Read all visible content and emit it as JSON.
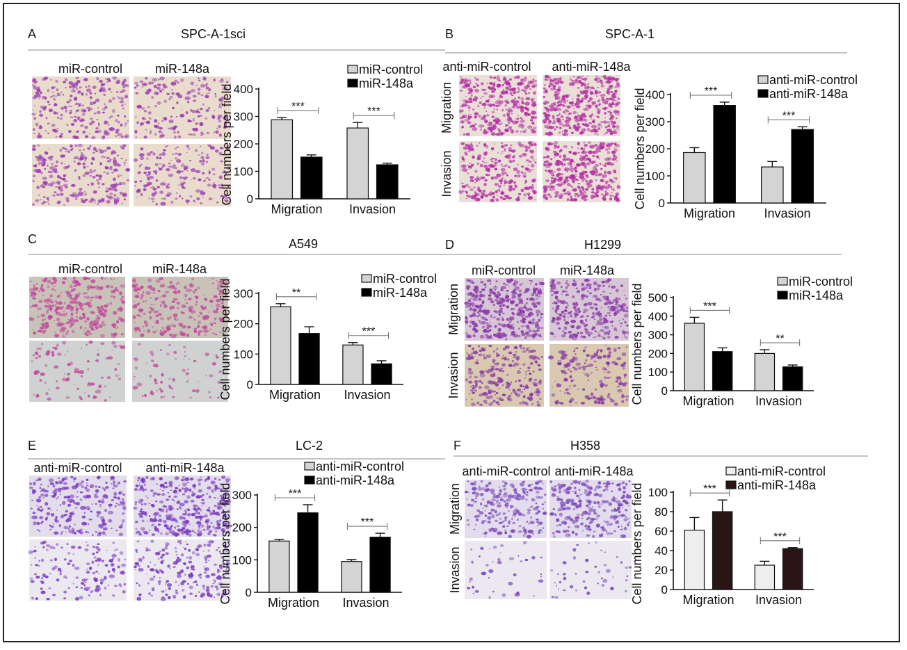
{
  "colors": {
    "control": "#d4d4d4",
    "treat": "#000000",
    "treat_h358": "#2a1515",
    "control_h358": "#eeeeee",
    "cells": "#9b3db0",
    "bg_warm": "#e9dccd",
    "bg_gray": "#cfd2d2",
    "bg_white": "#eeeeee"
  },
  "panels": [
    {
      "letter": "A",
      "title": "SPC-A-1sci",
      "img_labels": [
        "miR-control",
        "miR-148a"
      ],
      "rows": [
        "Migration",
        "Invasion"
      ],
      "cell_color": "#9b3db0",
      "bg_top": "#e9dccd",
      "bg_bot": "#e9dccd",
      "icount_top": 260,
      "icount_bot": 260
    },
    {
      "letter": "B",
      "title": "SPC-A-1",
      "img_labels": [
        "anti-miR-control",
        "anti-miR-148a"
      ],
      "rows": [
        "Migration",
        "Invasion"
      ],
      "cell_color": "#b32fa2",
      "bg_top": "#eadfd7",
      "bg_bot": "#eadfd7",
      "icount_top": 320,
      "icount_bot": 260
    },
    {
      "letter": "C",
      "title": "A549",
      "img_labels": [
        "miR-control",
        "miR-148a"
      ],
      "rows": [
        "Migration",
        "Invasion"
      ],
      "cell_color": "#c24b9c",
      "bg_top": "#c9c2b8",
      "bg_bot": "#cfd2d0",
      "icount_top": 320,
      "icount_bot": 90
    },
    {
      "letter": "D",
      "title": "H1299",
      "img_labels": [
        "miR-control",
        "miR-148a"
      ],
      "rows": [
        "Migration",
        "Invasion"
      ],
      "cell_color": "#8a3aa8",
      "bg_top": "#d7c7d6",
      "bg_bot": "#d9c9b0",
      "icount_top": 360,
      "icount_bot": 230
    },
    {
      "letter": "E",
      "title": "LC-2",
      "img_labels": [
        "anti-miR-control",
        "anti-miR-148a"
      ],
      "rows": [
        "Migration",
        "Invasion"
      ],
      "cell_color": "#7a3cc0",
      "bg_top": "#e3dcea",
      "bg_bot": "#ece8ef",
      "icount_top": 260,
      "icount_bot": 150
    },
    {
      "letter": "F",
      "title": "H358",
      "img_labels": [
        "anti-miR-control",
        "anti-miR-148a"
      ],
      "rows": [
        "Migration",
        "Invasion"
      ],
      "cell_color": "#7d4ab8",
      "bg_top": "#e2dcec",
      "bg_bot": "#ebe8f0",
      "icount_top": 220,
      "icount_bot": 40
    }
  ],
  "chart_data": [
    {
      "panel": "A",
      "type": "bar",
      "categories": [
        "Migration",
        "Invasion"
      ],
      "ylabel": "Cell numbers per field",
      "ylim": [
        0,
        400
      ],
      "yticks": [
        0,
        100,
        200,
        300,
        400
      ],
      "series": [
        {
          "name": "miR-control",
          "values": [
            288,
            258
          ],
          "errors": [
            8,
            20
          ]
        },
        {
          "name": "miR-148a",
          "values": [
            152,
            124
          ],
          "errors": [
            8,
            6
          ]
        }
      ],
      "significance": [
        "***",
        "***"
      ]
    },
    {
      "panel": "B",
      "type": "bar",
      "categories": [
        "Migration",
        "Invasion"
      ],
      "ylabel": "Cell numbers per field",
      "ylim": [
        0,
        400
      ],
      "yticks": [
        0,
        100,
        200,
        300,
        400
      ],
      "series": [
        {
          "name": "anti-miR-control",
          "values": [
            186,
            133
          ],
          "errors": [
            18,
            20
          ]
        },
        {
          "name": "anti-miR-148a",
          "values": [
            360,
            271
          ],
          "errors": [
            12,
            10
          ]
        }
      ],
      "significance": [
        "***",
        "***"
      ]
    },
    {
      "panel": "C",
      "type": "bar",
      "categories": [
        "Migration",
        "Invasion"
      ],
      "ylabel": "Cell numbers per field",
      "ylim": [
        0,
        300
      ],
      "yticks": [
        0,
        100,
        200,
        300
      ],
      "series": [
        {
          "name": "miR-control",
          "values": [
            256,
            130
          ],
          "errors": [
            10,
            8
          ]
        },
        {
          "name": "miR-148a",
          "values": [
            168,
            68
          ],
          "errors": [
            22,
            10
          ]
        }
      ],
      "significance": [
        "**",
        "***"
      ]
    },
    {
      "panel": "D",
      "type": "bar",
      "categories": [
        "Migration",
        "Invasion"
      ],
      "ylabel": "Cell numbers per field",
      "ylim": [
        0,
        500
      ],
      "yticks": [
        0,
        100,
        200,
        300,
        400,
        500
      ],
      "series": [
        {
          "name": "miR-control",
          "values": [
            362,
            200
          ],
          "errors": [
            32,
            20
          ]
        },
        {
          "name": "miR-148a",
          "values": [
            210,
            128
          ],
          "errors": [
            20,
            10
          ]
        }
      ],
      "significance": [
        "***",
        "**"
      ]
    },
    {
      "panel": "E",
      "type": "bar",
      "categories": [
        "Migration",
        "Invasion"
      ],
      "ylabel": "Cell numbers per field",
      "ylim": [
        0,
        300
      ],
      "yticks": [
        0,
        100,
        200,
        300
      ],
      "series": [
        {
          "name": "anti-miR-control",
          "values": [
            158,
            95
          ],
          "errors": [
            5,
            6
          ]
        },
        {
          "name": "anti-miR-148a",
          "values": [
            245,
            170
          ],
          "errors": [
            25,
            12
          ]
        }
      ],
      "significance": [
        "***",
        "***"
      ]
    },
    {
      "panel": "F",
      "type": "bar",
      "categories": [
        "Migration",
        "Invasion"
      ],
      "ylabel": "Cell numbers per field",
      "ylim": [
        0,
        100
      ],
      "yticks": [
        0,
        20,
        40,
        60,
        80,
        100
      ],
      "series": [
        {
          "name": "anti-miR-control",
          "values": [
            61,
            25
          ],
          "errors": [
            13,
            4
          ]
        },
        {
          "name": "anti-miR-148a",
          "values": [
            80,
            42
          ],
          "errors": [
            12,
            1
          ]
        }
      ],
      "significance": [
        "***",
        "***"
      ]
    }
  ]
}
